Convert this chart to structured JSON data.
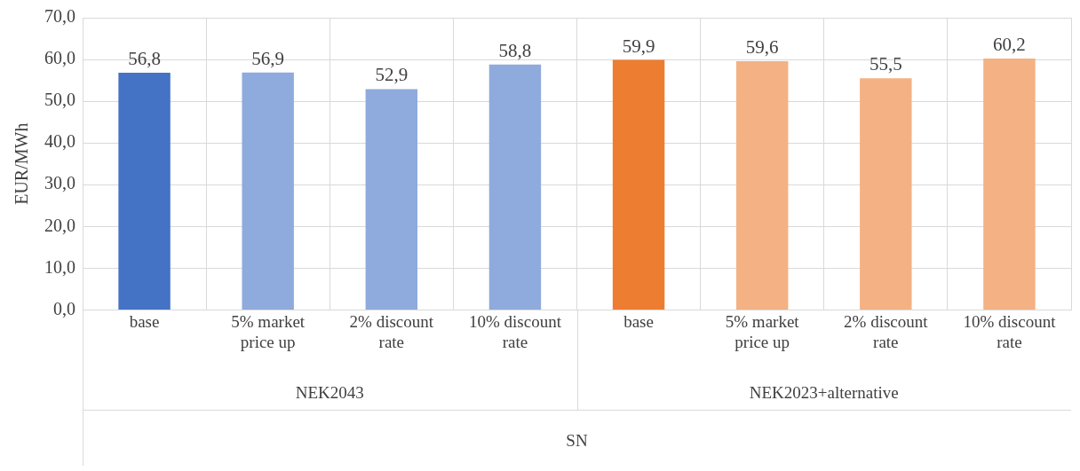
{
  "chart_data": {
    "type": "bar",
    "ylabel": "EUR/MWh",
    "categories": [
      "base",
      "5% market price up",
      "2% discount rate",
      "10% discount rate",
      "base",
      "5% market price up",
      "2% discount rate",
      "10% discount rate"
    ],
    "values": [
      56.8,
      56.9,
      52.9,
      58.8,
      59.9,
      59.6,
      55.5,
      60.2
    ],
    "value_labels": [
      "56,8",
      "56,9",
      "52,9",
      "58,8",
      "59,9",
      "59,6",
      "55,5",
      "60,2"
    ],
    "colors": [
      "#4472c4",
      "#8faadc",
      "#8faadc",
      "#8faadc",
      "#ed7d31",
      "#f4b183",
      "#f4b183",
      "#f4b183"
    ],
    "ylim": [
      0,
      70
    ],
    "yticks": [
      {
        "value": 0,
        "label": "0,0"
      },
      {
        "value": 10,
        "label": "10,0"
      },
      {
        "value": 20,
        "label": "20,0"
      },
      {
        "value": 30,
        "label": "30,0"
      },
      {
        "value": 40,
        "label": "40,0"
      },
      {
        "value": 50,
        "label": "50,0"
      },
      {
        "value": 60,
        "label": "60,0"
      },
      {
        "value": 70,
        "label": "70,0"
      }
    ],
    "grid": true,
    "annotations": [
      "NEK2043",
      "NEK2023+alternative",
      "SN"
    ]
  }
}
